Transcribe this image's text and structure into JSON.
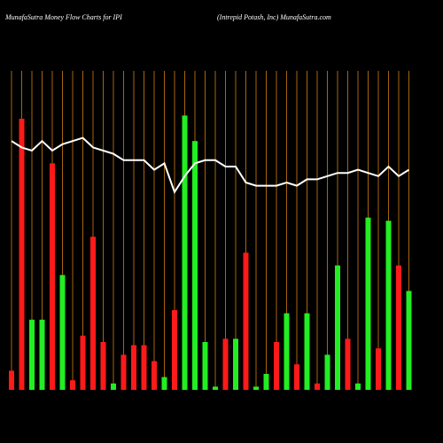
{
  "chart_data": {
    "type": "bar",
    "title": "MunafaSutra  Money Flow  Charts for IPI",
    "subtitle": "(Intrepid Potash,  Inc) MunafaSutra.com",
    "categories": [
      null,
      null,
      null,
      null,
      null,
      null,
      null,
      null,
      null,
      null,
      null,
      null,
      null,
      null,
      null,
      null,
      null,
      null,
      null,
      null,
      null,
      null,
      null,
      null,
      null,
      null,
      null,
      null,
      null,
      null,
      null,
      null,
      null,
      null,
      null,
      null,
      null,
      null,
      null,
      null
    ],
    "values": [
      6,
      85,
      22,
      22,
      71,
      36,
      3,
      17,
      48,
      15,
      2,
      11,
      14,
      14,
      9,
      4,
      25,
      86,
      78,
      15,
      1,
      16,
      16,
      43,
      1,
      5,
      15,
      24,
      8,
      24,
      2,
      11,
      39,
      16,
      2,
      54,
      13,
      53,
      39,
      31
    ],
    "colors": [
      "#ff1a1a",
      "#ff1a1a",
      "#22ee22",
      "#22ee22",
      "#ff1a1a",
      "#22ee22",
      "#ff1a1a",
      "#ff1a1a",
      "#ff1a1a",
      "#ff1a1a",
      "#22ee22",
      "#ff1a1a",
      "#ff1a1a",
      "#ff1a1a",
      "#ff1a1a",
      "#22ee22",
      "#ff1a1a",
      "#22ee22",
      "#22ee22",
      "#22ee22",
      "#22ee22",
      "#ff1a1a",
      "#22ee22",
      "#ff1a1a",
      "#22ee22",
      "#22ee22",
      "#ff1a1a",
      "#22ee22",
      "#ff1a1a",
      "#22ee22",
      "#ff1a1a",
      "#22ee22",
      "#22ee22",
      "#ff1a1a",
      "#22ee22",
      "#22ee22",
      "#ff1a1a",
      "#22ee22",
      "#ff1a1a",
      "#22ee22"
    ],
    "line": {
      "color": "#ffffff",
      "values": [
        78,
        76,
        75,
        78,
        75,
        77,
        78,
        79,
        76,
        75,
        74,
        72,
        72,
        72,
        69,
        71,
        62,
        67,
        71,
        72,
        72,
        70,
        70,
        65,
        64,
        64,
        64,
        65,
        64,
        66,
        66,
        67,
        68,
        68,
        69,
        68,
        67,
        70,
        67,
        69
      ]
    },
    "ylim": [
      0,
      100
    ],
    "grid": true,
    "grid_color": "#a8650c"
  }
}
